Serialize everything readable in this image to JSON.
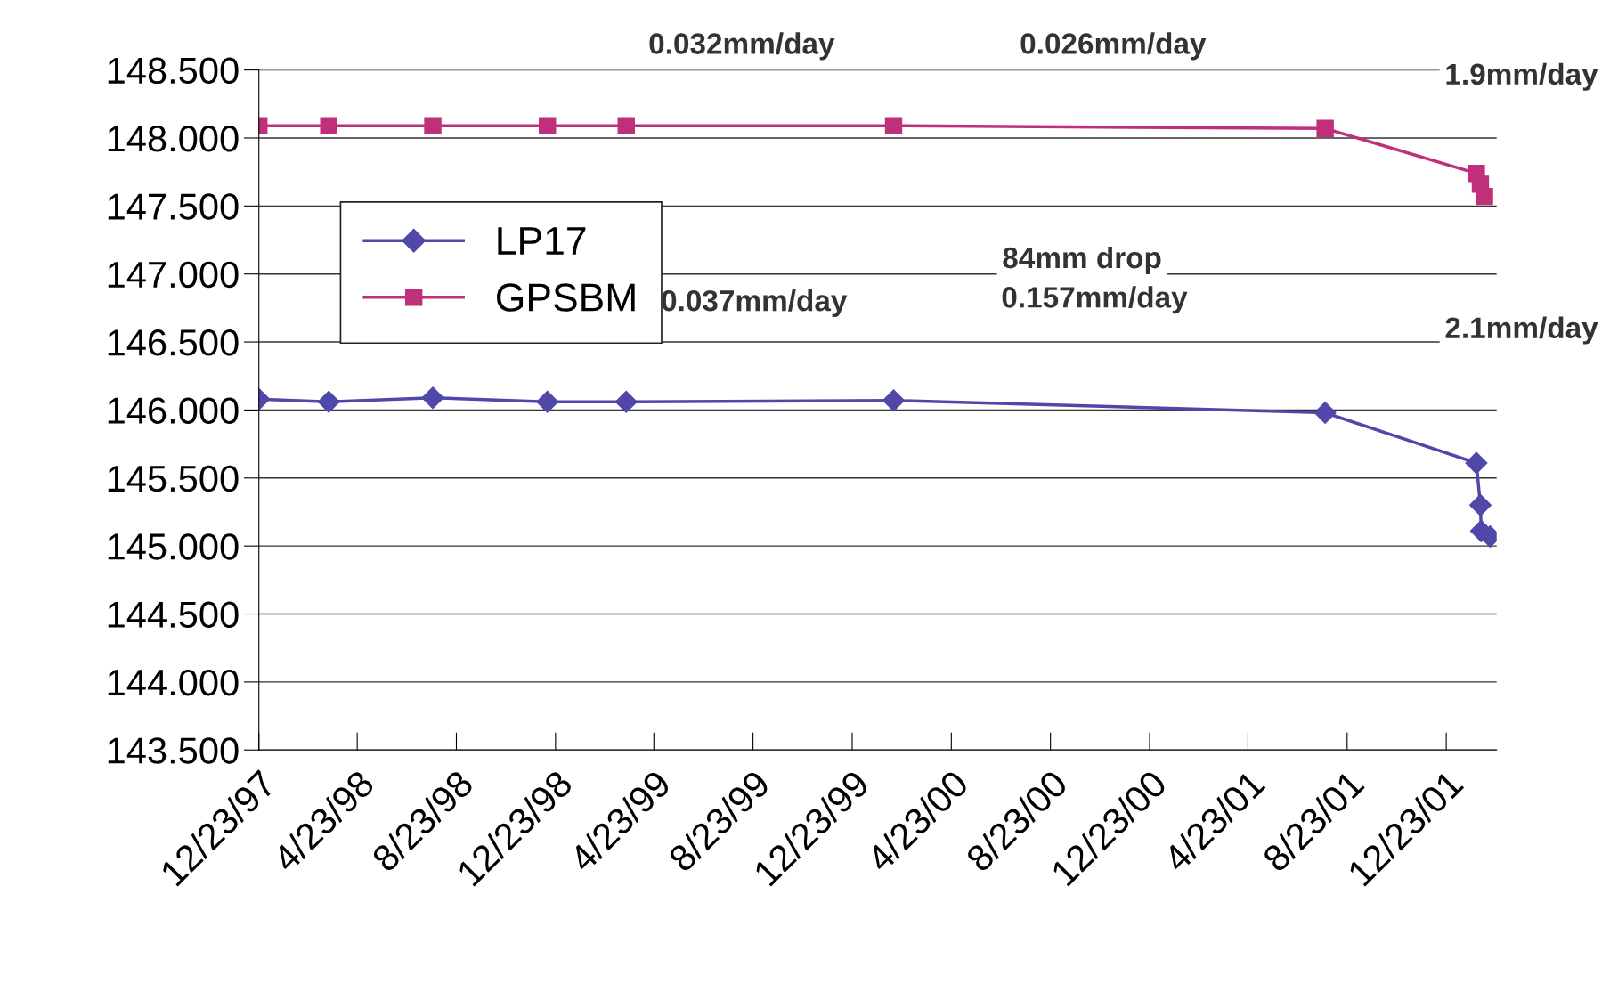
{
  "chart_data": {
    "type": "line",
    "line_style": "solid",
    "grid": "y",
    "legend": "top left",
    "series": [
      {
        "name": "LP17",
        "color": "#5048a8",
        "marker": "diamond",
        "x": [
          "1997-12-23",
          "1998-03-19",
          "1998-07-25",
          "1998-12-13",
          "1999-03-20",
          "2000-02-12",
          "2001-07-27",
          "2002-01-29",
          "2002-02-03",
          "2002-02-04",
          "2002-02-15"
        ],
        "values": [
          146.08,
          146.06,
          146.09,
          146.06,
          146.06,
          146.07,
          145.98,
          145.61,
          145.3,
          145.11,
          145.07
        ]
      },
      {
        "name": "GPSBM",
        "color": "#c0307a",
        "marker": "square",
        "x": [
          "1997-12-23",
          "1998-03-19",
          "1998-07-25",
          "1998-12-13",
          "1999-03-20",
          "2000-02-12",
          "2001-07-27",
          "2002-01-29",
          "2002-02-03",
          "2002-02-08"
        ],
        "values": [
          148.09,
          148.09,
          148.09,
          148.09,
          148.09,
          148.09,
          148.07,
          147.74,
          147.66,
          147.57
        ]
      }
    ],
    "xlim": [
      "1997-12-23",
      "2002-02-23"
    ],
    "xticks": [
      {
        "value": "1997-12-23",
        "label": "12/23/97"
      },
      {
        "value": "1998-04-23",
        "label": "4/23/98"
      },
      {
        "value": "1998-08-23",
        "label": "8/23/98"
      },
      {
        "value": "1998-12-23",
        "label": "12/23/98"
      },
      {
        "value": "1999-04-23",
        "label": "4/23/99"
      },
      {
        "value": "1999-08-23",
        "label": "8/23/99"
      },
      {
        "value": "1999-12-23",
        "label": "12/23/99"
      },
      {
        "value": "2000-04-23",
        "label": "4/23/00"
      },
      {
        "value": "2000-08-23",
        "label": "8/23/00"
      },
      {
        "value": "2000-12-23",
        "label": "12/23/00"
      },
      {
        "value": "2001-04-23",
        "label": "4/23/01"
      },
      {
        "value": "2001-08-23",
        "label": "8/23/01"
      },
      {
        "value": "2001-12-23",
        "label": "12/23/01"
      }
    ],
    "ylim": [
      143.5,
      148.5
    ],
    "yticks": [
      {
        "value": 143.5,
        "label": "143.500"
      },
      {
        "value": 144.0,
        "label": "144.000"
      },
      {
        "value": 144.5,
        "label": "144.500"
      },
      {
        "value": 145.0,
        "label": "145.000"
      },
      {
        "value": 145.5,
        "label": "145.500"
      },
      {
        "value": 146.0,
        "label": "146.000"
      },
      {
        "value": 146.5,
        "label": "146.500"
      },
      {
        "value": 147.0,
        "label": "147.000"
      },
      {
        "value": 147.5,
        "label": "147.500"
      },
      {
        "value": 148.0,
        "label": "148.000"
      },
      {
        "value": 148.5,
        "label": "148.500"
      }
    ],
    "annotations": [
      "0.032mm/day",
      "0.026mm/day",
      "1.9mm/day",
      "84mm drop",
      "0.157mm/day",
      "0.037mm/day",
      "2.1mm/day"
    ]
  }
}
